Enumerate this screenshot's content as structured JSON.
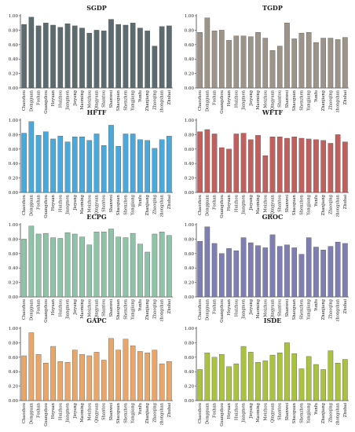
{
  "categories": [
    "Chaozhou",
    "Dongguan",
    "Foshan",
    "Guangzhou",
    "Heyuan",
    "Huizhou",
    "Jiangmen",
    "Jieyang",
    "Maoming",
    "Meizhou",
    "Qingyuan",
    "Shantou",
    "Shanwei",
    "Shaoguan",
    "Shenzhen",
    "Yangjiang",
    "Yunfu",
    "Zhanjiang",
    "Zhaoqing",
    "zhongshan",
    "Zhuhai"
  ],
  "ytick_labels": [
    "0.00",
    "0.20",
    "0.40",
    "0.60",
    "0.80",
    "1.00"
  ],
  "chart_data": [
    {
      "type": "bar",
      "title": "SGDP",
      "color": "#5c6b70",
      "ylim": [
        0,
        1
      ],
      "values": [
        0.88,
        0.98,
        0.86,
        0.9,
        0.87,
        0.84,
        0.89,
        0.86,
        0.83,
        0.76,
        0.8,
        0.79,
        0.95,
        0.88,
        0.87,
        0.9,
        0.83,
        0.79,
        0.58,
        0.85,
        0.86
      ]
    },
    {
      "type": "bar",
      "title": "TGDP",
      "color": "#9c9389",
      "ylim": [
        0,
        1
      ],
      "values": [
        0.77,
        0.97,
        0.79,
        0.8,
        0.66,
        0.72,
        0.72,
        0.71,
        0.77,
        0.69,
        0.52,
        0.58,
        0.9,
        0.68,
        0.76,
        0.77,
        0.63,
        0.69,
        0.69,
        0.67,
        0.7
      ]
    },
    {
      "type": "bar",
      "title": "HFTF",
      "color": "#4aa8db",
      "ylim": [
        0,
        1
      ],
      "values": [
        0.82,
        0.98,
        0.79,
        0.84,
        0.74,
        0.78,
        0.7,
        0.77,
        0.77,
        0.72,
        0.81,
        0.65,
        0.93,
        0.64,
        0.81,
        0.81,
        0.73,
        0.72,
        0.61,
        0.73,
        0.78
      ]
    },
    {
      "type": "bar",
      "title": "WFTF",
      "color": "#c0605e",
      "ylim": [
        0,
        1
      ],
      "values": [
        0.84,
        0.87,
        0.81,
        0.62,
        0.6,
        0.81,
        0.82,
        0.73,
        0.79,
        0.51,
        0.77,
        0.77,
        0.75,
        0.77,
        0.75,
        0.74,
        0.73,
        0.72,
        0.68,
        0.8,
        0.7
      ]
    },
    {
      "type": "bar",
      "title": "ECPG",
      "color": "#8ec3a8",
      "ylim": [
        0,
        1
      ],
      "values": [
        0.8,
        0.98,
        0.87,
        0.88,
        0.82,
        0.81,
        0.89,
        0.87,
        0.83,
        0.72,
        0.9,
        0.9,
        0.94,
        0.83,
        0.82,
        0.88,
        0.73,
        0.62,
        0.87,
        0.9,
        0.85
      ]
    },
    {
      "type": "bar",
      "title": "GROC",
      "color": "#7f7eb2",
      "ylim": [
        0,
        1
      ],
      "values": [
        0.77,
        0.97,
        0.74,
        0.6,
        0.67,
        0.64,
        0.82,
        0.75,
        0.71,
        0.68,
        0.86,
        0.7,
        0.72,
        0.68,
        0.59,
        0.82,
        0.69,
        0.65,
        0.7,
        0.76,
        0.74
      ]
    },
    {
      "type": "bar",
      "title": "GAPC",
      "color": "#e8a66a",
      "ylim": [
        0,
        1
      ],
      "values": [
        0.62,
        0.94,
        0.64,
        0.52,
        0.75,
        0.54,
        0.53,
        0.7,
        0.64,
        0.62,
        0.67,
        0.56,
        0.86,
        0.7,
        0.85,
        0.76,
        0.68,
        0.66,
        0.7,
        0.51,
        0.54
      ]
    },
    {
      "type": "bar",
      "title": "ISDE",
      "color": "#a9c23f",
      "ylim": [
        0,
        1
      ],
      "values": [
        0.43,
        0.66,
        0.6,
        0.64,
        0.47,
        0.51,
        0.75,
        0.67,
        0.53,
        0.55,
        0.63,
        0.66,
        0.8,
        0.65,
        0.44,
        0.61,
        0.5,
        0.43,
        0.69,
        0.52,
        0.57
      ]
    }
  ]
}
